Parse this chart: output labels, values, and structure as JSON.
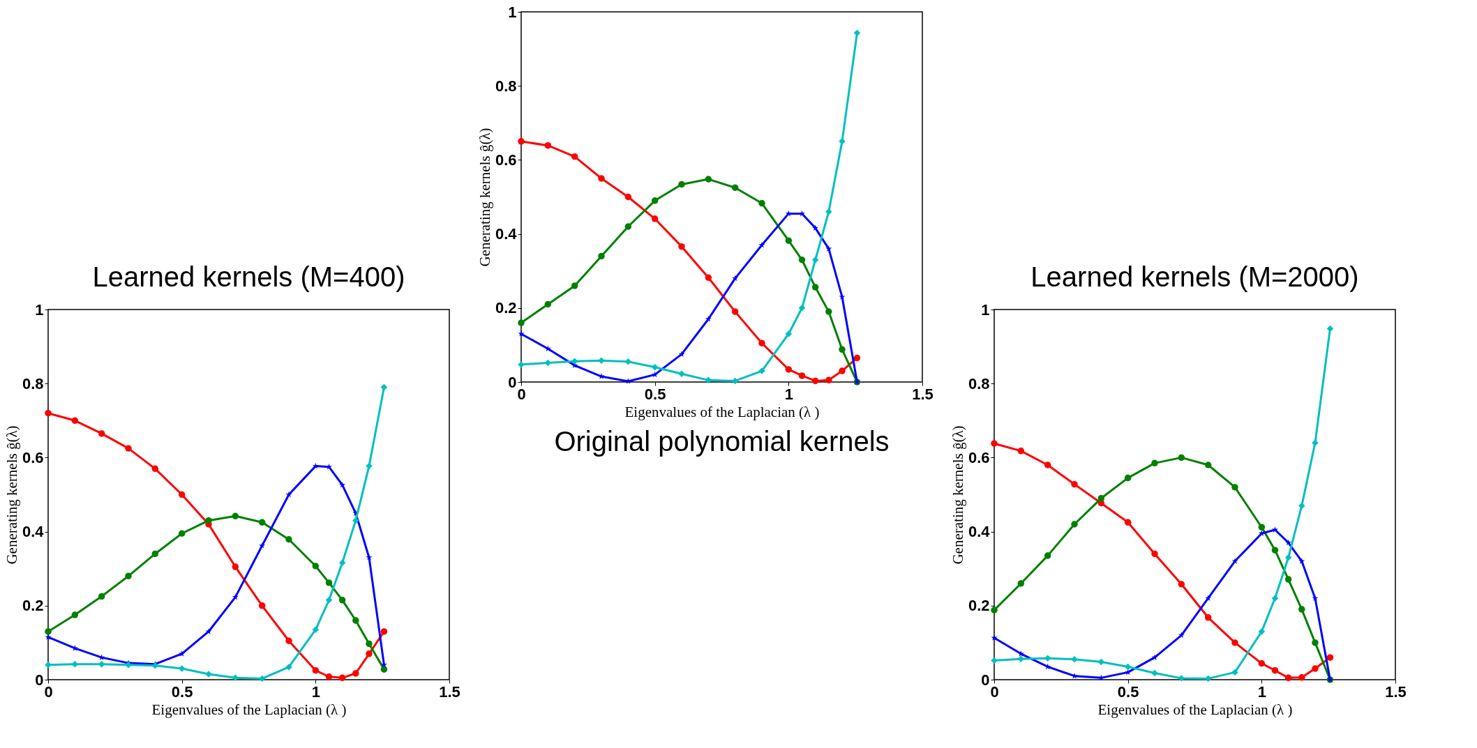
{
  "chart_data": [
    {
      "type": "line",
      "title": "Learned kernels (M=400)",
      "xlabel": "Eigenvalues of the Laplacian (λ )",
      "ylabel": "Generating kernels ĝ(λ)",
      "x": [
        0,
        0.1,
        0.2,
        0.3,
        0.4,
        0.5,
        0.6,
        0.7,
        0.8,
        0.9,
        1.0,
        1.05,
        1.1,
        1.15,
        1.2,
        1.256
      ],
      "xlim": [
        0,
        1.5
      ],
      "ylim": [
        0,
        1
      ],
      "xticks": [
        0,
        0.5,
        1,
        1.5
      ],
      "yticks": [
        0,
        0.2,
        0.4,
        0.6,
        0.8,
        1
      ],
      "grid": false,
      "line_style": "solid",
      "series": [
        {
          "color": "#ff0000",
          "marker": "circle",
          "values": [
            0.72,
            0.7,
            0.665,
            0.625,
            0.57,
            0.5,
            0.42,
            0.305,
            0.2,
            0.105,
            0.025,
            0.008,
            0.005,
            0.017,
            0.07,
            0.13
          ]
        },
        {
          "color": "#008000",
          "marker": "circle",
          "values": [
            0.13,
            0.175,
            0.225,
            0.28,
            0.34,
            0.395,
            0.43,
            0.442,
            0.425,
            0.379,
            0.307,
            0.262,
            0.215,
            0.16,
            0.097,
            0.028
          ]
        },
        {
          "color": "#0000ff",
          "marker": "star",
          "values": [
            0.115,
            0.085,
            0.06,
            0.045,
            0.042,
            0.07,
            0.13,
            0.223,
            0.362,
            0.5,
            0.577,
            0.575,
            0.526,
            0.45,
            0.33,
            0.04
          ]
        },
        {
          "color": "#00bfbf",
          "marker": "diamond",
          "values": [
            0.04,
            0.042,
            0.042,
            0.04,
            0.038,
            0.03,
            0.015,
            0.005,
            0.003,
            0.034,
            0.135,
            0.215,
            0.316,
            0.43,
            0.577,
            0.79
          ]
        }
      ]
    },
    {
      "type": "line",
      "title": "Original polynomial kernels",
      "xlabel": "Eigenvalues of the Laplacian (λ )",
      "ylabel": "Generating kernels ĝ(λ)",
      "x": [
        0,
        0.1,
        0.2,
        0.3,
        0.4,
        0.5,
        0.6,
        0.7,
        0.8,
        0.9,
        1.0,
        1.05,
        1.1,
        1.15,
        1.2,
        1.256
      ],
      "xlim": [
        0,
        1.5
      ],
      "ylim": [
        0,
        1
      ],
      "xticks": [
        0,
        0.5,
        1,
        1.5
      ],
      "yticks": [
        0,
        0.2,
        0.4,
        0.6,
        0.8,
        1
      ],
      "grid": false,
      "line_style": "solid",
      "series": [
        {
          "color": "#ff0000",
          "marker": "circle",
          "values": [
            0.65,
            0.639,
            0.609,
            0.55,
            0.5,
            0.441,
            0.366,
            0.282,
            0.19,
            0.105,
            0.034,
            0.017,
            0.003,
            0.005,
            0.03,
            0.065
          ]
        },
        {
          "color": "#008000",
          "marker": "circle",
          "values": [
            0.16,
            0.21,
            0.26,
            0.34,
            0.42,
            0.49,
            0.534,
            0.548,
            0.525,
            0.483,
            0.382,
            0.33,
            0.256,
            0.19,
            0.088,
            0.0
          ]
        },
        {
          "color": "#0000ff",
          "marker": "star",
          "values": [
            0.13,
            0.09,
            0.045,
            0.015,
            0.002,
            0.02,
            0.075,
            0.17,
            0.28,
            0.37,
            0.455,
            0.455,
            0.416,
            0.36,
            0.23,
            0.0
          ]
        },
        {
          "color": "#00bfbf",
          "marker": "diamond",
          "values": [
            0.047,
            0.052,
            0.056,
            0.058,
            0.055,
            0.04,
            0.022,
            0.005,
            0.003,
            0.03,
            0.13,
            0.2,
            0.33,
            0.46,
            0.65,
            0.943
          ]
        }
      ]
    },
    {
      "type": "line",
      "title": "Learned kernels (M=2000)",
      "xlabel": "Eigenvalues of the Laplacian (λ )",
      "ylabel": "Generating kernels ĝ(λ)",
      "x": [
        0,
        0.1,
        0.2,
        0.3,
        0.4,
        0.5,
        0.6,
        0.7,
        0.8,
        0.9,
        1.0,
        1.05,
        1.1,
        1.15,
        1.2,
        1.256
      ],
      "xlim": [
        0,
        1.5
      ],
      "ylim": [
        0,
        1
      ],
      "xticks": [
        0,
        0.5,
        1,
        1.5
      ],
      "yticks": [
        0,
        0.2,
        0.4,
        0.6,
        0.8,
        1
      ],
      "grid": false,
      "line_style": "solid",
      "series": [
        {
          "color": "#ff0000",
          "marker": "circle",
          "values": [
            0.638,
            0.618,
            0.58,
            0.528,
            0.477,
            0.425,
            0.34,
            0.258,
            0.168,
            0.1,
            0.044,
            0.025,
            0.005,
            0.006,
            0.03,
            0.06
          ]
        },
        {
          "color": "#008000",
          "marker": "circle",
          "values": [
            0.188,
            0.26,
            0.335,
            0.42,
            0.49,
            0.545,
            0.585,
            0.6,
            0.58,
            0.52,
            0.412,
            0.35,
            0.271,
            0.19,
            0.1,
            0.0
          ]
        },
        {
          "color": "#0000ff",
          "marker": "star",
          "values": [
            0.113,
            0.07,
            0.035,
            0.01,
            0.005,
            0.02,
            0.06,
            0.12,
            0.22,
            0.32,
            0.395,
            0.405,
            0.37,
            0.32,
            0.22,
            0.0
          ]
        },
        {
          "color": "#00bfbf",
          "marker": "diamond",
          "values": [
            0.052,
            0.056,
            0.058,
            0.055,
            0.048,
            0.035,
            0.018,
            0.004,
            0.003,
            0.02,
            0.13,
            0.22,
            0.33,
            0.47,
            0.64,
            0.948
          ]
        }
      ]
    }
  ]
}
